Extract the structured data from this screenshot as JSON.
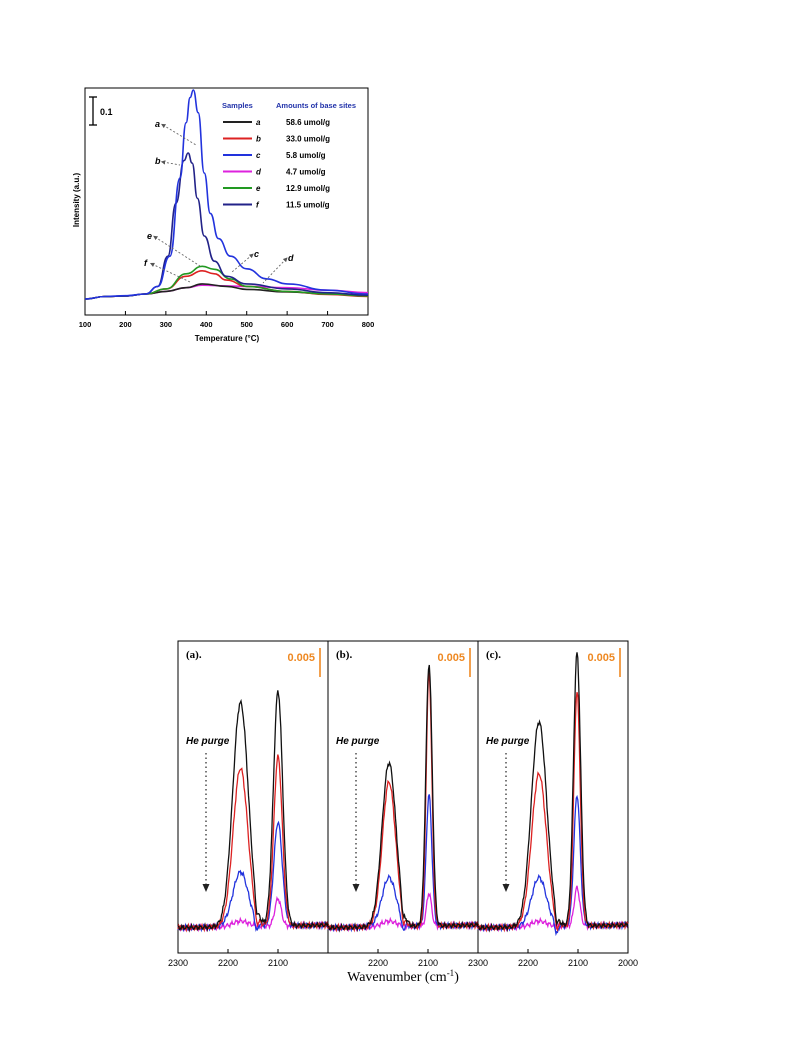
{
  "chart_data": [
    {
      "type": "line",
      "xlabel": "Temperature (°C)",
      "ylabel": "Intensity (a.u.)",
      "xlim": [
        100,
        800
      ],
      "xticks": [
        100,
        200,
        300,
        400,
        500,
        600,
        700,
        800
      ],
      "scale_bar_label": "0.1",
      "legend": {
        "header_samples": "Samples",
        "header_amounts": "Amounts of base sites",
        "placement": "top-right"
      },
      "series": [
        {
          "name": "a",
          "amount": "58.6 umol/g",
          "color": "#222222",
          "points": [
            [
              100,
              0.0
            ],
            [
              150,
              0.01
            ],
            [
              200,
              0.012
            ],
            [
              250,
              0.02
            ],
            [
              300,
              0.03
            ],
            [
              350,
              0.045
            ],
            [
              390,
              0.06
            ],
            [
              450,
              0.05
            ],
            [
              500,
              0.038
            ],
            [
              600,
              0.028
            ],
            [
              700,
              0.02
            ],
            [
              800,
              0.015
            ]
          ]
        },
        {
          "name": "b",
          "amount": "33.0 umol/g",
          "color": "#dd2222",
          "points": [
            [
              100,
              0.0
            ],
            [
              150,
              0.01
            ],
            [
              200,
              0.012
            ],
            [
              250,
              0.02
            ],
            [
              300,
              0.04
            ],
            [
              350,
              0.09
            ],
            [
              390,
              0.112
            ],
            [
              420,
              0.1
            ],
            [
              450,
              0.075
            ],
            [
              500,
              0.05
            ],
            [
              600,
              0.03
            ],
            [
              700,
              0.018
            ],
            [
              800,
              0.01
            ]
          ]
        },
        {
          "name": "c",
          "amount": "5.8 umol/g",
          "color": "#2233dd",
          "points": [
            [
              100,
              0.0
            ],
            [
              150,
              0.01
            ],
            [
              200,
              0.013
            ],
            [
              250,
              0.02
            ],
            [
              280,
              0.05
            ],
            [
              310,
              0.17
            ],
            [
              335,
              0.48
            ],
            [
              350,
              0.7
            ],
            [
              360,
              0.8
            ],
            [
              368,
              0.83
            ],
            [
              380,
              0.74
            ],
            [
              395,
              0.5
            ],
            [
              410,
              0.34
            ],
            [
              430,
              0.24
            ],
            [
              460,
              0.17
            ],
            [
              500,
              0.12
            ],
            [
              550,
              0.08
            ],
            [
              600,
              0.06
            ],
            [
              700,
              0.035
            ],
            [
              800,
              0.02
            ]
          ]
        },
        {
          "name": "d",
          "amount": "4.7 umol/g",
          "color": "#dd22dd",
          "points": [
            [
              100,
              0.0
            ],
            [
              150,
              0.01
            ],
            [
              200,
              0.012
            ],
            [
              250,
              0.02
            ],
            [
              300,
              0.03
            ],
            [
              350,
              0.045
            ],
            [
              390,
              0.055
            ],
            [
              450,
              0.052
            ],
            [
              500,
              0.05
            ],
            [
              600,
              0.045
            ],
            [
              700,
              0.035
            ],
            [
              800,
              0.025
            ]
          ]
        },
        {
          "name": "e",
          "amount": "12.9 umol/g",
          "color": "#229922",
          "points": [
            [
              100,
              0.0
            ],
            [
              150,
              0.01
            ],
            [
              200,
              0.012
            ],
            [
              250,
              0.02
            ],
            [
              300,
              0.04
            ],
            [
              350,
              0.1
            ],
            [
              390,
              0.13
            ],
            [
              420,
              0.118
            ],
            [
              460,
              0.08
            ],
            [
              500,
              0.05
            ],
            [
              600,
              0.03
            ],
            [
              700,
              0.02
            ],
            [
              800,
              0.012
            ]
          ]
        },
        {
          "name": "f",
          "amount": "11.5 umol/g",
          "color": "#222288",
          "points": [
            [
              100,
              0.0
            ],
            [
              150,
              0.01
            ],
            [
              200,
              0.012
            ],
            [
              250,
              0.02
            ],
            [
              280,
              0.05
            ],
            [
              305,
              0.17
            ],
            [
              325,
              0.38
            ],
            [
              345,
              0.55
            ],
            [
              355,
              0.58
            ],
            [
              365,
              0.54
            ],
            [
              378,
              0.4
            ],
            [
              395,
              0.25
            ],
            [
              420,
              0.15
            ],
            [
              450,
              0.09
            ],
            [
              500,
              0.06
            ],
            [
              600,
              0.04
            ],
            [
              700,
              0.025
            ],
            [
              800,
              0.015
            ]
          ]
        }
      ],
      "annotations": [
        {
          "text": "a",
          "target": "a"
        },
        {
          "text": "b",
          "target": "b"
        },
        {
          "text": "e",
          "target": "e"
        },
        {
          "text": "f",
          "target": "f"
        },
        {
          "text": "c",
          "target": "c"
        },
        {
          "text": "d",
          "target": "d"
        }
      ]
    },
    {
      "type": "line",
      "panels": [
        {
          "label": "(a).",
          "scale_label": "0.005",
          "purge_label": "He purge",
          "xlim": [
            2300,
            2000
          ],
          "xticks": [
            2300,
            2200,
            2100
          ],
          "peak1_x": 2175,
          "peak2_x": 2100,
          "dip_x": 2143,
          "series": [
            {
              "color": "#111111",
              "h1": 0.82,
              "h2": 0.86,
              "w1": 22,
              "w2": 13
            },
            {
              "color": "#dd2222",
              "h1": 0.58,
              "h2": 0.62,
              "w1": 21,
              "w2": 12
            },
            {
              "color": "#2233dd",
              "h1": 0.2,
              "h2": 0.38,
              "w1": 22,
              "w2": 12
            },
            {
              "color": "#dd22dd",
              "h1": 0.02,
              "h2": 0.1,
              "w1": 22,
              "w2": 9
            }
          ]
        },
        {
          "label": "(b).",
          "scale_label": "0.005",
          "purge_label": "He purge",
          "xlim": [
            2300,
            2000
          ],
          "xticks": [
            2200,
            2100
          ],
          "peak1_x": 2178,
          "peak2_x": 2098,
          "dip_x": 2150,
          "series": [
            {
              "color": "#111111",
              "h1": 0.6,
              "h2": 0.96,
              "w1": 20,
              "w2": 9
            },
            {
              "color": "#dd2222",
              "h1": 0.53,
              "h2": 0.93,
              "w1": 19,
              "w2": 8
            },
            {
              "color": "#2233dd",
              "h1": 0.18,
              "h2": 0.48,
              "w1": 20,
              "w2": 8
            },
            {
              "color": "#dd22dd",
              "h1": 0.02,
              "h2": 0.12,
              "w1": 20,
              "w2": 7
            }
          ]
        },
        {
          "label": "(c).",
          "scale_label": "0.005",
          "purge_label": "He purge",
          "xlim": [
            2300,
            2000
          ],
          "xticks": [
            2300,
            2200,
            2100,
            2000
          ],
          "peak1_x": 2178,
          "peak2_x": 2102,
          "dip_x": 2143,
          "series": [
            {
              "color": "#111111",
              "h1": 0.75,
              "h2": 1.0,
              "w1": 22,
              "w2": 10
            },
            {
              "color": "#dd2222",
              "h1": 0.56,
              "h2": 0.86,
              "w1": 21,
              "w2": 9
            },
            {
              "color": "#2233dd",
              "h1": 0.18,
              "h2": 0.48,
              "w1": 21,
              "w2": 9
            },
            {
              "color": "#dd22dd",
              "h1": 0.02,
              "h2": 0.14,
              "w1": 21,
              "w2": 8
            }
          ]
        }
      ],
      "xlabel_main": "Wavenumber (cm",
      "xlabel_sup": "-1",
      "xlabel_close": ")",
      "scale_color": "#ee8822"
    }
  ]
}
